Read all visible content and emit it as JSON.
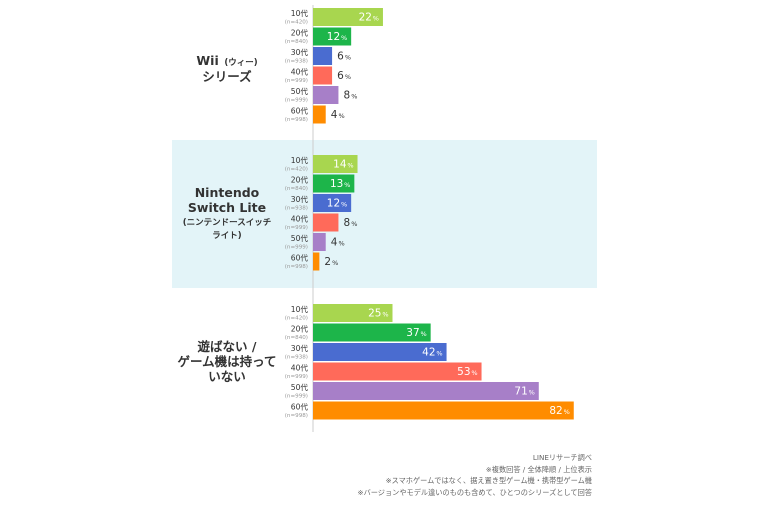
{
  "chart_data": {
    "type": "bar",
    "orientation": "horizontal",
    "value_unit": "%",
    "groups": [
      {
        "label_main": [
          "Wii",
          "シリーズ"
        ],
        "label_small": "(ウィー)",
        "label_sub": [],
        "highlight": false,
        "bars": [
          {
            "age": "10代",
            "n": "(n=420)",
            "value": 22
          },
          {
            "age": "20代",
            "n": "(n=840)",
            "value": 12
          },
          {
            "age": "30代",
            "n": "(n=938)",
            "value": 6
          },
          {
            "age": "40代",
            "n": "(n=999)",
            "value": 6
          },
          {
            "age": "50代",
            "n": "(n=999)",
            "value": 8
          },
          {
            "age": "60代",
            "n": "(n=998)",
            "value": 4
          }
        ]
      },
      {
        "label_main": [
          "Nintendo",
          "Switch Lite"
        ],
        "label_small": "",
        "label_sub": [
          "(ニンテンドースイッチ",
          "ライト)"
        ],
        "highlight": true,
        "bars": [
          {
            "age": "10代",
            "n": "(n=420)",
            "value": 14
          },
          {
            "age": "20代",
            "n": "(n=840)",
            "value": 13
          },
          {
            "age": "30代",
            "n": "(n=938)",
            "value": 12
          },
          {
            "age": "40代",
            "n": "(n=999)",
            "value": 8
          },
          {
            "age": "50代",
            "n": "(n=999)",
            "value": 4
          },
          {
            "age": "60代",
            "n": "(n=998)",
            "value": 2
          }
        ]
      },
      {
        "label_main": [
          "遊ばない /",
          "ゲーム機は持って",
          "いない"
        ],
        "label_small": "",
        "label_sub": [],
        "highlight": false,
        "bars": [
          {
            "age": "10代",
            "n": "(n=420)",
            "value": 25
          },
          {
            "age": "20代",
            "n": "(n=840)",
            "value": 37
          },
          {
            "age": "30代",
            "n": "(n=938)",
            "value": 42
          },
          {
            "age": "40代",
            "n": "(n=999)",
            "value": 53
          },
          {
            "age": "50代",
            "n": "(n=999)",
            "value": 71
          },
          {
            "age": "60代",
            "n": "(n=998)",
            "value": 82
          }
        ]
      }
    ],
    "colors": [
      "#a8d64f",
      "#1db54a",
      "#4a6cd0",
      "#ff6a5a",
      "#a77fc8",
      "#ff8c00"
    ],
    "highlight_bg": "#e3f4f8",
    "axis_color": "#cccccc"
  },
  "notes": [
    "LINEリサーチ調べ",
    "※複数回答 / 全体降順 / 上位表示",
    "※スマホゲームではなく、据え置き型ゲーム機・携帯型ゲーム機",
    "※バージョンやモデル違いのものも含めて、ひとつのシリーズとして回答"
  ]
}
